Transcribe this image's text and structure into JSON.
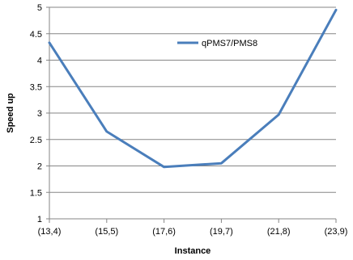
{
  "chart_data": {
    "type": "line",
    "title": "",
    "xlabel": "Instance",
    "ylabel": "Speed up",
    "categories": [
      "(13,4)",
      "(15,5)",
      "(17,6)",
      "(19,7)",
      "(21,8)",
      "(23,9)"
    ],
    "ylim": [
      1,
      5
    ],
    "yticks": [
      1,
      1.5,
      2,
      2.5,
      3,
      3.5,
      4,
      4.5,
      5
    ],
    "ytick_labels": [
      "1",
      "1.5",
      "2",
      "2.5",
      "3",
      "3.5",
      "4",
      "4.5",
      "5"
    ],
    "grid": true,
    "legend_position": "top-right",
    "series": [
      {
        "name": "qPMS7/PMS8",
        "color": "#4a7ebb",
        "values": [
          4.33,
          2.65,
          1.98,
          2.05,
          2.97,
          4.95
        ]
      }
    ]
  }
}
